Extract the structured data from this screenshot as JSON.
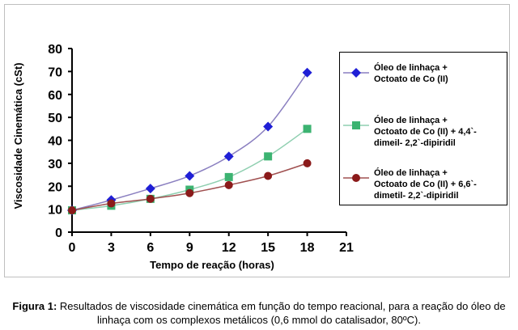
{
  "chart_data": {
    "type": "line",
    "ylabel": "Viscosidade Cinemática (cSt)",
    "xlabel": "Tempo de reação (horas)",
    "xlim": [
      0,
      21
    ],
    "ylim": [
      0,
      80
    ],
    "x_ticks": [
      "0",
      "3",
      "6",
      "9",
      "12",
      "15",
      "18",
      "21"
    ],
    "y_ticks": [
      "0",
      "10",
      "20",
      "30",
      "40",
      "50",
      "60",
      "70",
      "80"
    ],
    "grid": false,
    "legend_position": "right",
    "series": [
      {
        "name": "Óleo de linhaça + Octoato de Co (II)",
        "legend_lines": [
          "Óleo de linhaça +",
          "Octoato de Co (II)"
        ],
        "color": "#1f1fd6",
        "line_color": "#8a7fc0",
        "marker": "diamond",
        "x": [
          0,
          3,
          6,
          9,
          12,
          15,
          18
        ],
        "y": [
          9.5,
          14,
          19,
          24.5,
          33,
          46,
          69.5
        ]
      },
      {
        "name": "Óleo de linhaça + Octoato de Co (II) + 4,4'-dimeil- 2,2'-dipiridil",
        "legend_lines": [
          "Óleo de linhaça +",
          "Octoato de Co (II) + 4,4`-",
          "dimeil- 2,2`-dipiridil"
        ],
        "color": "#3cb371",
        "line_color": "#8fcfb0",
        "marker": "square",
        "x": [
          0,
          3,
          6,
          9,
          12,
          15,
          18
        ],
        "y": [
          9.5,
          11.5,
          14.5,
          18.5,
          24,
          33,
          45
        ]
      },
      {
        "name": "Óleo de linhaça + Octoato de Co (II) + 6,6'-dimetil- 2,2'-dipiridil",
        "legend_lines": [
          "Óleo de linhaça +",
          "Octoato de Co (II) + 6,6`-",
          "dimetil- 2,2`-dipiridil"
        ],
        "color": "#8b1a1a",
        "line_color": "#a05050",
        "marker": "circle",
        "x": [
          0,
          3,
          6,
          9,
          12,
          15,
          18
        ],
        "y": [
          9.5,
          12.5,
          14.5,
          17,
          20.5,
          24.5,
          30
        ]
      }
    ]
  },
  "caption": {
    "label": "Figura 1:",
    "text": " Resultados de viscosidade cinemática em função do tempo reacional, para a reação do óleo de linhaça com os complexos metálicos (0,6 mmol do catalisador, 80ºC)."
  }
}
